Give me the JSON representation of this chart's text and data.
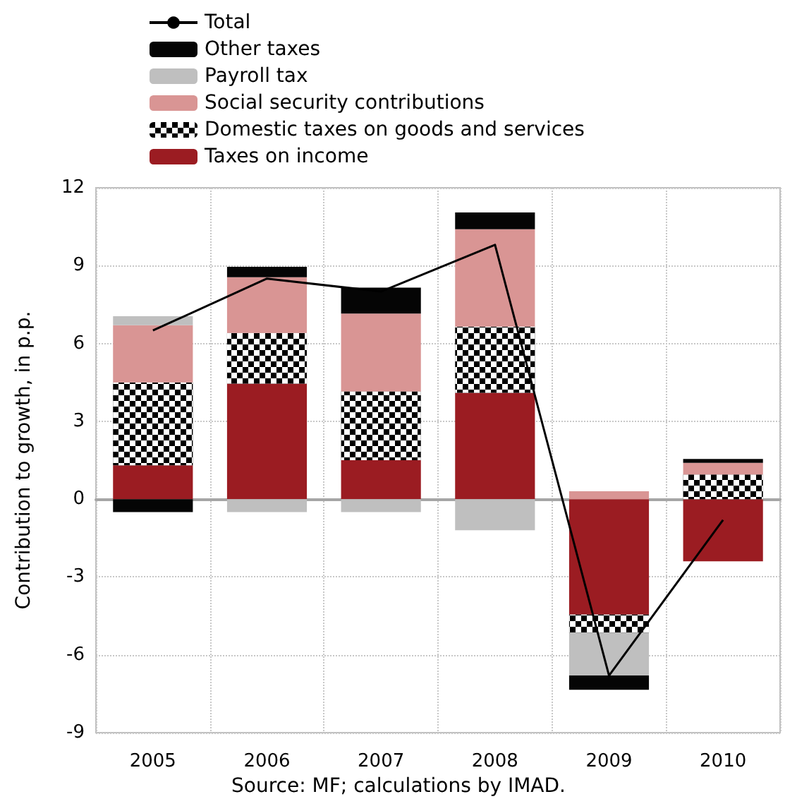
{
  "chart_data": {
    "type": "bar",
    "stacked": true,
    "ylabel": "Contribution to growth, in p.p.",
    "categories": [
      "2005",
      "2006",
      "2007",
      "2008",
      "2009",
      "2010"
    ],
    "series": [
      {
        "name": "Taxes on income",
        "color": "#9b1c22",
        "values": [
          1.3,
          4.45,
          1.5,
          4.1,
          -4.45,
          -2.4
        ]
      },
      {
        "name": "Domestic taxes on goods and services",
        "color": "#000000",
        "values": [
          3.2,
          1.95,
          2.65,
          2.55,
          -0.7,
          0.95
        ]
      },
      {
        "name": "Social security contributions",
        "color": "#d99594",
        "values": [
          2.2,
          2.15,
          3.0,
          3.75,
          0.3,
          0.45
        ]
      },
      {
        "name": "Payroll tax",
        "color": "#bfbfbf",
        "values": [
          0.35,
          -0.5,
          -0.5,
          -1.2,
          -1.65,
          0
        ]
      },
      {
        "name": "Other taxes",
        "color": "#050505",
        "values": [
          -0.5,
          0.4,
          1.0,
          0.65,
          -0.55,
          0.15
        ]
      },
      {
        "name": "Total",
        "type": "line",
        "color": "#000000",
        "values": [
          6.5,
          8.5,
          8.0,
          9.8,
          -6.8,
          -0.8
        ]
      }
    ],
    "ylim": [
      -9,
      12
    ],
    "yticks": [
      -9,
      -6,
      -3,
      0,
      3,
      6,
      9,
      12
    ],
    "grid": true,
    "legend": "top left",
    "marker": "none",
    "line_style": "solid",
    "annotations": [
      "Source: MF; calculations by IMAD."
    ]
  }
}
